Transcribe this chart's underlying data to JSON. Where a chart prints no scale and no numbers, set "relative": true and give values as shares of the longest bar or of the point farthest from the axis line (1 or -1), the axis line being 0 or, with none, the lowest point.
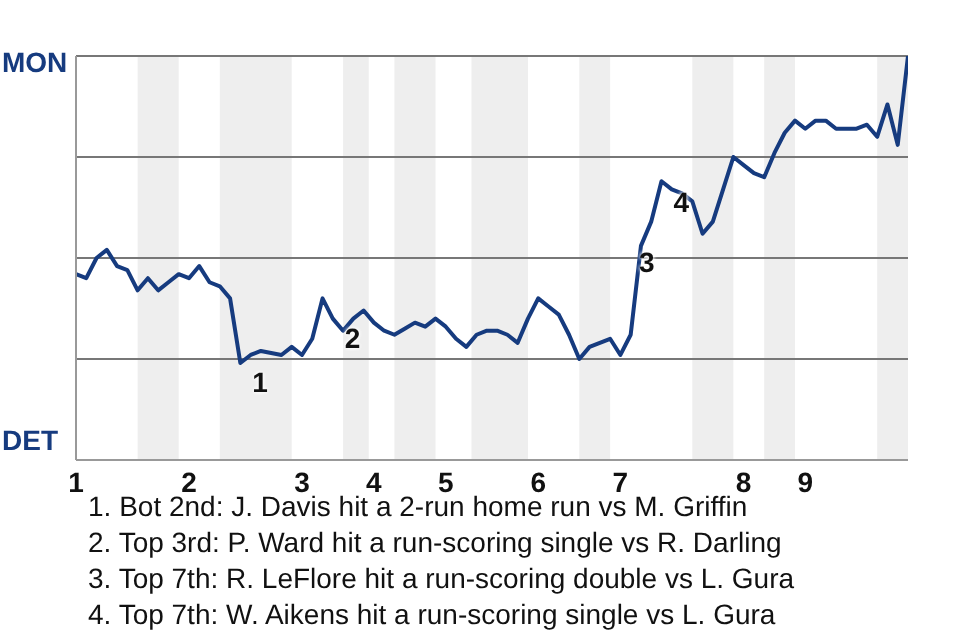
{
  "chart_data": {
    "type": "line",
    "relative": true,
    "grid": "y",
    "categories": [
      "1",
      null,
      null,
      null,
      null,
      null,
      null,
      null,
      null,
      null,
      null,
      "2",
      null,
      null,
      null,
      null,
      null,
      null,
      null,
      null,
      null,
      null,
      "3",
      null,
      null,
      null,
      null,
      null,
      null,
      "4",
      null,
      null,
      null,
      null,
      null,
      null,
      "5",
      null,
      null,
      null,
      null,
      null,
      null,
      null,
      null,
      "6",
      null,
      null,
      null,
      null,
      null,
      null,
      null,
      "7",
      null,
      null,
      null,
      null,
      null,
      null,
      null,
      null,
      null,
      null,
      null,
      "8",
      null,
      null,
      null,
      null,
      null,
      "9",
      null,
      null,
      null,
      null,
      null,
      null,
      null,
      null,
      null,
      null
    ],
    "series": [
      {
        "color": "#163b7f",
        "values": [
          0.46,
          0.45,
          0.5,
          0.52,
          0.48,
          0.47,
          0.42,
          0.45,
          0.42,
          0.44,
          0.46,
          0.45,
          0.48,
          0.44,
          0.43,
          0.4,
          0.24,
          0.26,
          0.27,
          0.265,
          0.26,
          0.28,
          0.26,
          0.3,
          0.4,
          0.35,
          0.32,
          0.35,
          0.37,
          0.34,
          0.32,
          0.31,
          0.325,
          0.34,
          0.33,
          0.35,
          0.33,
          0.3,
          0.28,
          0.31,
          0.32,
          0.32,
          0.31,
          0.29,
          0.35,
          0.4,
          0.38,
          0.36,
          0.31,
          0.25,
          0.28,
          0.29,
          0.3,
          0.26,
          0.31,
          0.53,
          0.59,
          0.69,
          0.67,
          0.66,
          0.64,
          0.56,
          0.59,
          0.67,
          0.75,
          0.73,
          0.71,
          0.7,
          0.76,
          0.81,
          0.84,
          0.82,
          0.84,
          0.84,
          0.82,
          0.82,
          0.82,
          0.83,
          0.8,
          0.88,
          0.78,
          1
        ]
      }
    ],
    "annotations": [
      "MON",
      "DET",
      {
        "text": "1",
        "y": 0.24
      },
      {
        "text": "2",
        "y": 0.35
      },
      {
        "text": "3",
        "y": 0.53
      },
      {
        "text": "4",
        "y": 0.69
      },
      "1. Bot 2nd: J. Davis hit a 2-run home run vs M. Griffin",
      "2. Top 3rd: P. Ward hit a run-scoring single vs R. Darling",
      "3. Top 7th: R. LeFlore hit a run-scoring double vs L. Gura",
      "4. Top 7th: W. Aikens hit a run-scoring single vs L. Gura"
    ]
  }
}
